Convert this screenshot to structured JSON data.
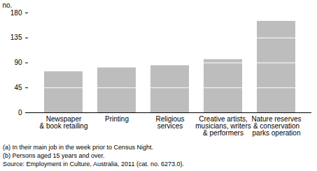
{
  "chart_data": {
    "type": "bar",
    "y_label": "no.",
    "categories": [
      "Newspaper\n& book retailing",
      "Printing",
      "Religious\nservices",
      "Creative artists,\nmusicians, writers\n& performers",
      "Nature reserves\n& conservation\nparks operation"
    ],
    "values": [
      74,
      81,
      85,
      96,
      165
    ],
    "color": "#bdbdbd",
    "ylim": [
      0,
      180
    ],
    "yticks": [
      0,
      45,
      90,
      135,
      180
    ],
    "grid": true,
    "notes": [
      "(a) In their main job in the week prior to Census Night.",
      "(b) Persons aged 15 years and over.",
      "Source: Employment in Culture, Australia, 2011 (cat. no. 6273.0)."
    ]
  }
}
